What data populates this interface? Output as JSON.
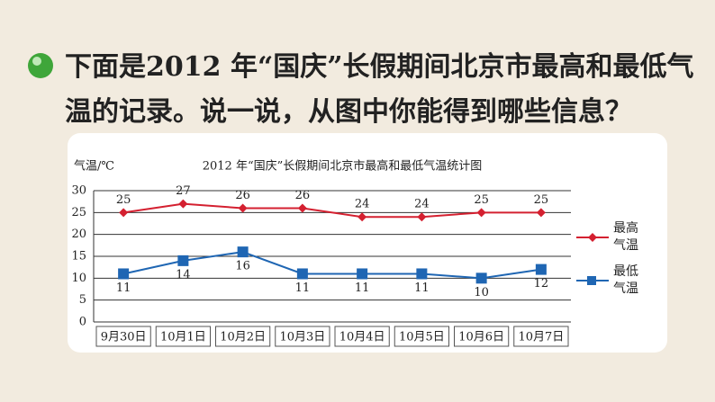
{
  "question": "下面是2012 年“国庆”长假期间北京市最高和最低气温的记录。说一说，从图中你能得到哪些信息？",
  "chart_data": {
    "type": "line",
    "title": "2012 年“国庆”长假期间北京市最高和最低气温统计图",
    "y_label": "气温/℃",
    "categories": [
      "9月30日",
      "10月1日",
      "10月2日",
      "10月3日",
      "10月4日",
      "10月5日",
      "10月6日",
      "10月7日"
    ],
    "series": [
      {
        "name": "最高气温",
        "color": "#d42030",
        "marker": "diamond",
        "values": [
          25,
          27,
          26,
          26,
          24,
          24,
          25,
          25
        ]
      },
      {
        "name": "最低气温",
        "color": "#1f66b3",
        "marker": "square",
        "values": [
          11,
          14,
          16,
          11,
          11,
          11,
          10,
          12
        ]
      }
    ],
    "ylim": [
      0,
      30
    ],
    "yticks": [
      0,
      5,
      10,
      15,
      20,
      25,
      30
    ],
    "grid": true
  }
}
